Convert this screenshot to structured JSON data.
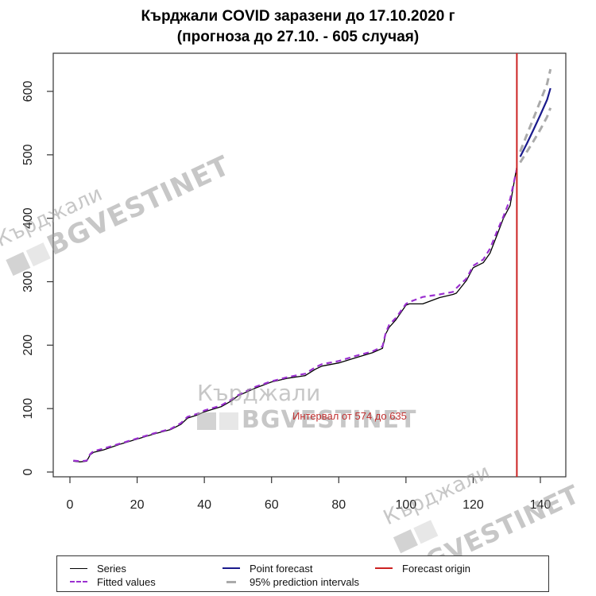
{
  "chart_data": {
    "type": "line",
    "title": "Кърджали COVID заразени до 17.10.2020 г",
    "subtitle": "(прогноза до 27.10. - 605 случая)",
    "xlabel": "",
    "ylabel": "",
    "xlim": [
      -3,
      149
    ],
    "ylim": [
      -8,
      660
    ],
    "x_ticks": [
      0,
      20,
      40,
      60,
      80,
      100,
      120,
      140
    ],
    "y_ticks": [
      0,
      100,
      200,
      300,
      400,
      500,
      600
    ],
    "grid": false,
    "legend_position": "bottom",
    "forecast_origin_x": 133,
    "annotation": "Интервал от 574 до 635",
    "series": [
      {
        "name": "Series",
        "color": "#000000",
        "style": "solid",
        "x": [
          1,
          3,
          5,
          6,
          7,
          10,
          15,
          20,
          25,
          30,
          33,
          35,
          38,
          40,
          45,
          48,
          50,
          55,
          60,
          65,
          70,
          73,
          75,
          80,
          85,
          90,
          93,
          94,
          95,
          97,
          100,
          101,
          105,
          110,
          114,
          115,
          118,
          120,
          123,
          125,
          127,
          129,
          131,
          133
        ],
        "values": [
          17,
          16,
          17,
          27,
          31,
          35,
          44,
          52,
          60,
          67,
          75,
          85,
          90,
          95,
          103,
          112,
          120,
          132,
          142,
          148,
          152,
          162,
          167,
          172,
          180,
          188,
          195,
          218,
          228,
          240,
          263,
          265,
          265,
          275,
          280,
          282,
          302,
          322,
          330,
          345,
          372,
          400,
          420,
          482
        ]
      },
      {
        "name": "Fitted values",
        "color": "#9b30d0",
        "style": "dashed",
        "x": [
          1,
          3,
          5,
          6,
          7,
          10,
          15,
          20,
          25,
          30,
          33,
          35,
          38,
          40,
          45,
          48,
          50,
          55,
          60,
          65,
          70,
          73,
          75,
          80,
          85,
          90,
          93,
          94,
          95,
          97,
          100,
          101,
          105,
          110,
          114,
          115,
          118,
          120,
          123,
          125,
          127,
          129,
          131,
          133
        ],
        "values": [
          18,
          17,
          18,
          28,
          33,
          37,
          45,
          53,
          61,
          68,
          77,
          87,
          92,
          97,
          105,
          114,
          121,
          134,
          143,
          150,
          155,
          165,
          170,
          175,
          183,
          190,
          198,
          220,
          232,
          243,
          265,
          268,
          276,
          280,
          284,
          290,
          305,
          325,
          335,
          352,
          378,
          403,
          430,
          478
        ]
      },
      {
        "name": "Point forecast",
        "color": "#1a1a8c",
        "style": "solid",
        "x": [
          134,
          136,
          138,
          140,
          142,
          143
        ],
        "values": [
          497,
          518,
          540,
          563,
          587,
          605
        ]
      },
      {
        "name": "95% prediction intervals (upper)",
        "color": "#aaaaaa",
        "style": "dashed",
        "x": [
          134,
          136,
          138,
          140,
          142,
          143
        ],
        "values": [
          505,
          532,
          558,
          585,
          612,
          635
        ]
      },
      {
        "name": "95% prediction intervals (lower)",
        "color": "#aaaaaa",
        "style": "dashed",
        "x": [
          134,
          136,
          138,
          140,
          142,
          143
        ],
        "values": [
          488,
          505,
          522,
          540,
          560,
          574
        ]
      }
    ],
    "legend": [
      {
        "label": "Series",
        "color": "#000000",
        "style": "solid"
      },
      {
        "label": "Fitted values",
        "color": "#9b30d0",
        "style": "dashed"
      },
      {
        "label": "Point forecast",
        "color": "#1a1a8c",
        "style": "solid"
      },
      {
        "label": "95% prediction intervals",
        "color": "#aaaaaa",
        "style": "dashed"
      },
      {
        "label": "Forecast origin",
        "color": "#cc2222",
        "style": "solid"
      }
    ]
  },
  "watermarks": {
    "line1": "Кърджали",
    "line2": "BGVESTINET"
  }
}
